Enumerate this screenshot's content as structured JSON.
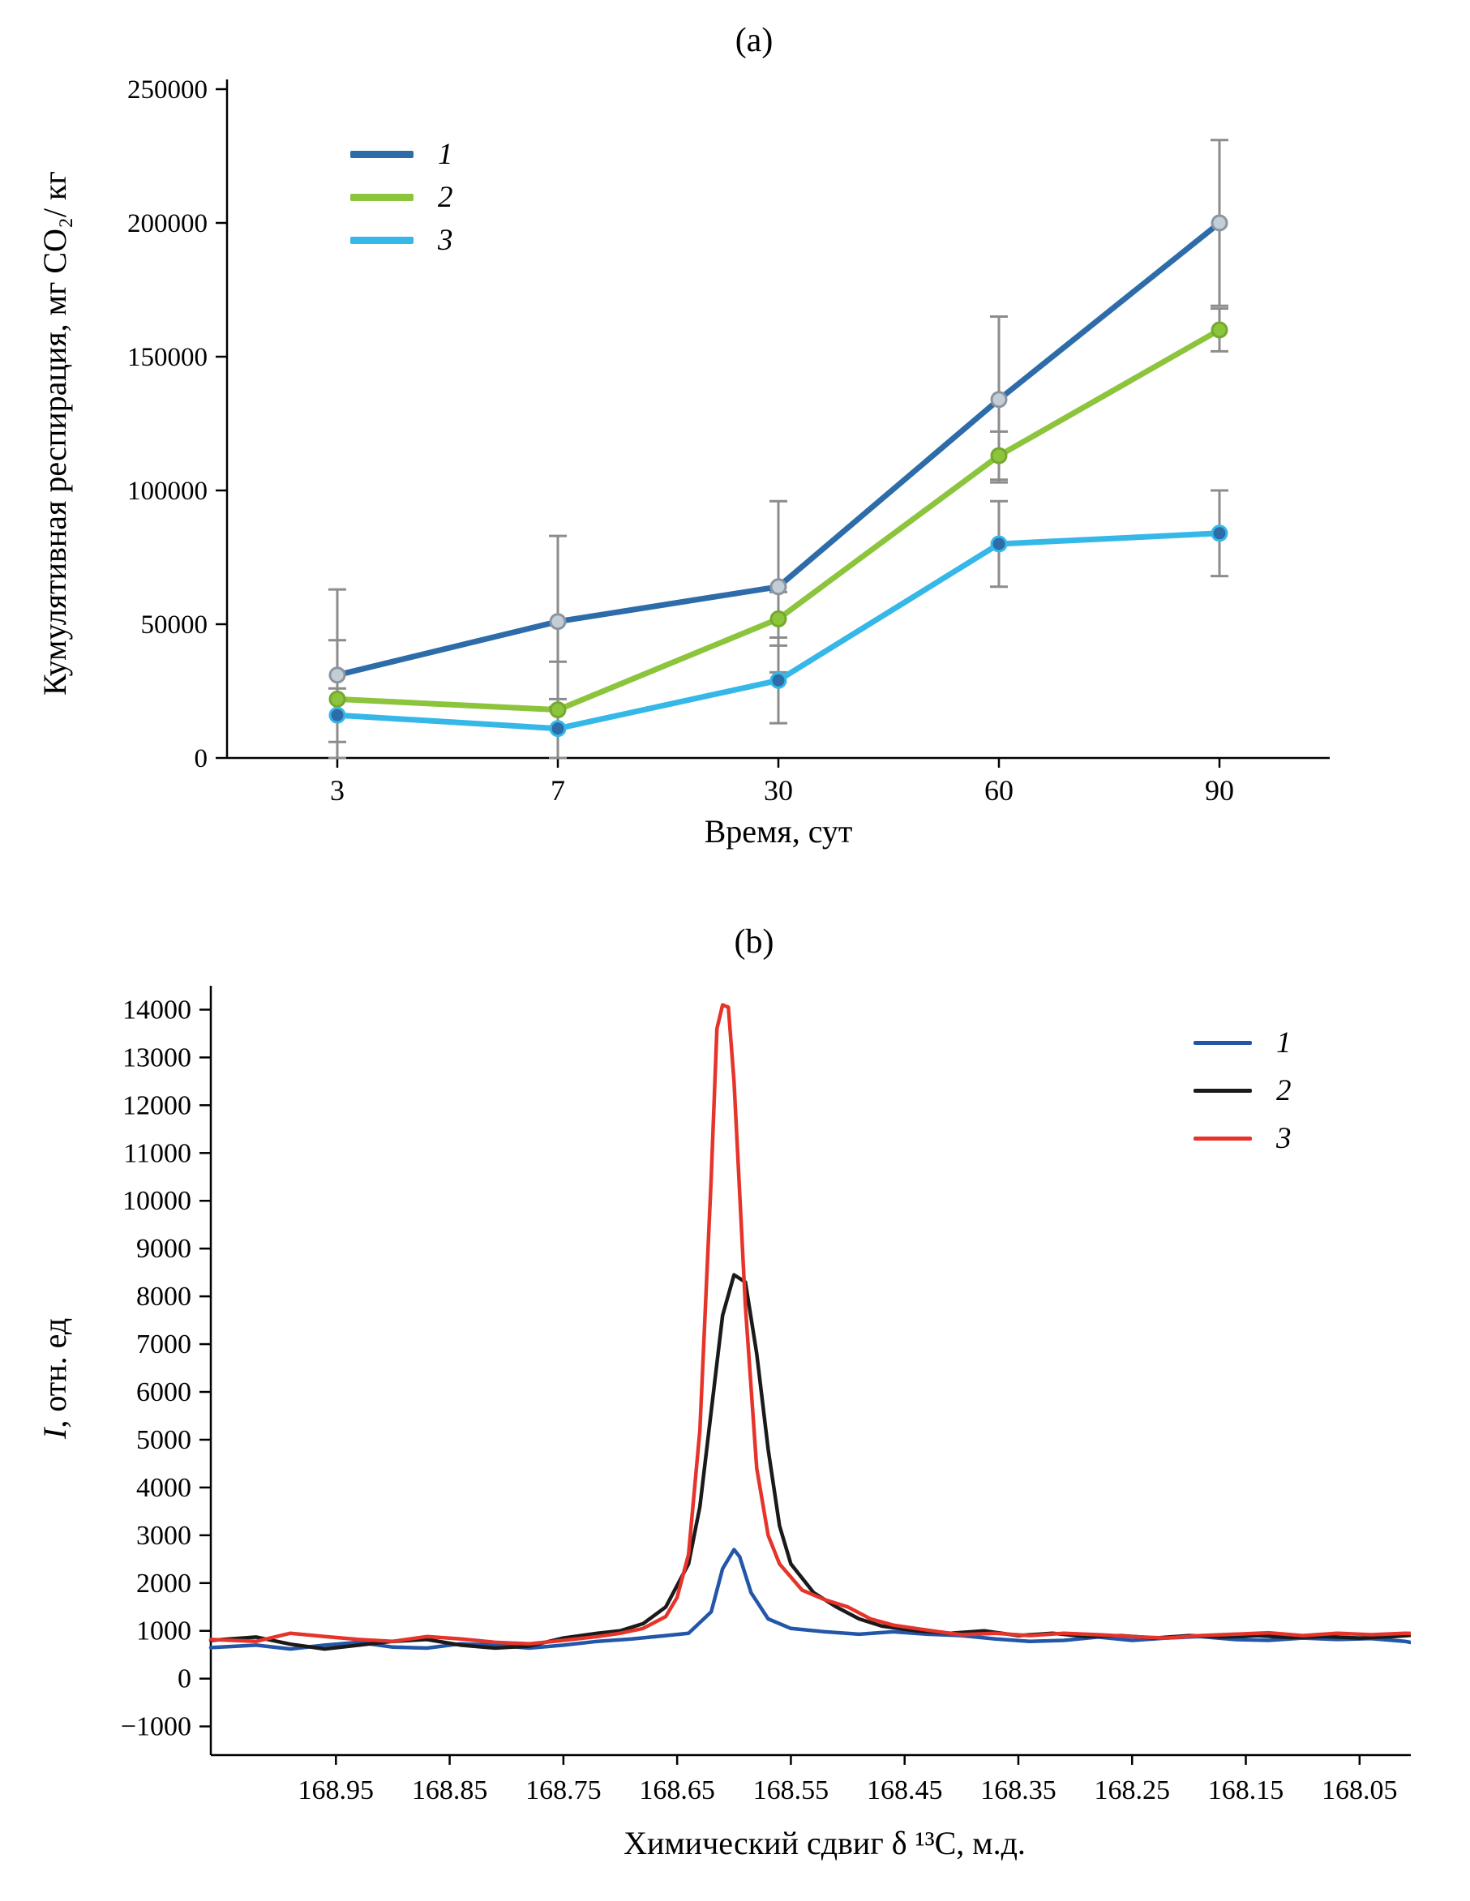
{
  "figure": {
    "panel_a_label": "(a)",
    "panel_b_label": "(b)"
  },
  "chart_data": [
    {
      "type": "line",
      "title": "(a)",
      "xlabel": "Время, сут",
      "ylabel": "Кумулятивная респирация, мг CO₂/ кг",
      "categories": [
        "3",
        "7",
        "30",
        "60",
        "90"
      ],
      "ylim": [
        0,
        250000
      ],
      "yticks": [
        0,
        50000,
        100000,
        150000,
        200000,
        250000
      ],
      "grid": false,
      "legend_position": "upper-left-inside",
      "error_bar_color": "#8c8c8c",
      "series": [
        {
          "name": "1",
          "color": "#2d6ca8",
          "marker_fill": "#c3cdd6",
          "marker_stroke": "#8a959e",
          "values": [
            31000,
            51000,
            64000,
            134000,
            200000
          ],
          "errors": [
            32000,
            32000,
            32000,
            31000,
            31000
          ]
        },
        {
          "name": "2",
          "color": "#8cc43c",
          "marker_fill": "#8cc43c",
          "marker_stroke": "#74a82e",
          "values": [
            22000,
            18000,
            52000,
            113000,
            160000
          ],
          "errors": [
            22000,
            18000,
            10000,
            9000,
            8000
          ]
        },
        {
          "name": "3",
          "color": "#35b8e8",
          "marker_fill": "#2d6ca8",
          "marker_stroke": "#35b8e8",
          "values": [
            16000,
            11000,
            29000,
            80000,
            84000
          ],
          "errors": [
            10000,
            11000,
            16000,
            16000,
            16000
          ]
        }
      ]
    },
    {
      "type": "line",
      "title": "(b)",
      "xlabel": "Химический сдвиг δ ¹³C, м.д.",
      "ylabel": "I, отн. ед",
      "ylabel_italic": "I",
      "ylabel_rest": ", отн. ед",
      "x_axis": "numeric_reversed",
      "xlim": [
        169.06,
        167.98
      ],
      "xticks": [
        168.95,
        168.85,
        168.75,
        168.65,
        168.55,
        168.45,
        168.35,
        168.25,
        168.15,
        168.05
      ],
      "ylim": [
        -1000,
        14000
      ],
      "yticks": [
        -1000,
        0,
        1000,
        2000,
        3000,
        4000,
        5000,
        6000,
        7000,
        8000,
        9000,
        10000,
        11000,
        12000,
        13000,
        14000
      ],
      "grid": false,
      "legend_position": "upper-right-inside",
      "series": [
        {
          "name": "1",
          "color": "#2356a8",
          "points": [
            [
              169.06,
              650
            ],
            [
              169.02,
              700
            ],
            [
              168.99,
              620
            ],
            [
              168.96,
              700
            ],
            [
              168.93,
              760
            ],
            [
              168.9,
              660
            ],
            [
              168.87,
              640
            ],
            [
              168.84,
              730
            ],
            [
              168.81,
              700
            ],
            [
              168.78,
              640
            ],
            [
              168.75,
              700
            ],
            [
              168.72,
              780
            ],
            [
              168.69,
              830
            ],
            [
              168.66,
              900
            ],
            [
              168.64,
              950
            ],
            [
              168.62,
              1400
            ],
            [
              168.61,
              2300
            ],
            [
              168.6,
              2700
            ],
            [
              168.595,
              2550
            ],
            [
              168.585,
              1800
            ],
            [
              168.57,
              1250
            ],
            [
              168.55,
              1050
            ],
            [
              168.52,
              980
            ],
            [
              168.49,
              930
            ],
            [
              168.46,
              980
            ],
            [
              168.43,
              930
            ],
            [
              168.4,
              900
            ],
            [
              168.37,
              830
            ],
            [
              168.34,
              780
            ],
            [
              168.31,
              800
            ],
            [
              168.28,
              870
            ],
            [
              168.25,
              800
            ],
            [
              168.22,
              850
            ],
            [
              168.19,
              880
            ],
            [
              168.16,
              820
            ],
            [
              168.13,
              800
            ],
            [
              168.1,
              850
            ],
            [
              168.07,
              820
            ],
            [
              168.04,
              840
            ],
            [
              168.01,
              780
            ],
            [
              167.98,
              640
            ]
          ]
        },
        {
          "name": "2",
          "color": "#1a1a1a",
          "points": [
            [
              169.06,
              800
            ],
            [
              169.02,
              870
            ],
            [
              168.99,
              720
            ],
            [
              168.96,
              620
            ],
            [
              168.93,
              700
            ],
            [
              168.9,
              780
            ],
            [
              168.87,
              820
            ],
            [
              168.84,
              700
            ],
            [
              168.81,
              640
            ],
            [
              168.78,
              680
            ],
            [
              168.75,
              850
            ],
            [
              168.72,
              950
            ],
            [
              168.7,
              1000
            ],
            [
              168.68,
              1150
            ],
            [
              168.66,
              1500
            ],
            [
              168.64,
              2400
            ],
            [
              168.63,
              3600
            ],
            [
              168.62,
              5600
            ],
            [
              168.61,
              7600
            ],
            [
              168.6,
              8450
            ],
            [
              168.59,
              8300
            ],
            [
              168.58,
              6800
            ],
            [
              168.57,
              4800
            ],
            [
              168.56,
              3200
            ],
            [
              168.55,
              2400
            ],
            [
              168.53,
              1800
            ],
            [
              168.51,
              1500
            ],
            [
              168.49,
              1250
            ],
            [
              168.47,
              1100
            ],
            [
              168.44,
              1000
            ],
            [
              168.41,
              950
            ],
            [
              168.38,
              1000
            ],
            [
              168.35,
              900
            ],
            [
              168.32,
              950
            ],
            [
              168.29,
              880
            ],
            [
              168.26,
              900
            ],
            [
              168.23,
              850
            ],
            [
              168.2,
              900
            ],
            [
              168.17,
              870
            ],
            [
              168.14,
              900
            ],
            [
              168.11,
              860
            ],
            [
              168.08,
              880
            ],
            [
              168.05,
              850
            ],
            [
              168.02,
              880
            ],
            [
              167.98,
              950
            ]
          ]
        },
        {
          "name": "3",
          "color": "#e6342b",
          "points": [
            [
              169.06,
              820
            ],
            [
              169.02,
              780
            ],
            [
              168.99,
              950
            ],
            [
              168.96,
              880
            ],
            [
              168.93,
              820
            ],
            [
              168.9,
              780
            ],
            [
              168.87,
              880
            ],
            [
              168.84,
              830
            ],
            [
              168.81,
              760
            ],
            [
              168.78,
              730
            ],
            [
              168.75,
              800
            ],
            [
              168.72,
              880
            ],
            [
              168.7,
              950
            ],
            [
              168.68,
              1050
            ],
            [
              168.66,
              1300
            ],
            [
              168.65,
              1700
            ],
            [
              168.64,
              2600
            ],
            [
              168.63,
              5200
            ],
            [
              168.62,
              10500
            ],
            [
              168.615,
              13600
            ],
            [
              168.61,
              14100
            ],
            [
              168.605,
              14050
            ],
            [
              168.6,
              12500
            ],
            [
              168.59,
              7800
            ],
            [
              168.58,
              4400
            ],
            [
              168.57,
              3000
            ],
            [
              168.56,
              2400
            ],
            [
              168.54,
              1850
            ],
            [
              168.52,
              1650
            ],
            [
              168.5,
              1500
            ],
            [
              168.48,
              1250
            ],
            [
              168.46,
              1120
            ],
            [
              168.44,
              1050
            ],
            [
              168.42,
              980
            ],
            [
              168.4,
              920
            ],
            [
              168.37,
              950
            ],
            [
              168.34,
              900
            ],
            [
              168.31,
              950
            ],
            [
              168.28,
              920
            ],
            [
              168.25,
              880
            ],
            [
              168.22,
              850
            ],
            [
              168.19,
              900
            ],
            [
              168.16,
              930
            ],
            [
              168.13,
              960
            ],
            [
              168.1,
              900
            ],
            [
              168.07,
              950
            ],
            [
              168.04,
              920
            ],
            [
              168.01,
              950
            ],
            [
              167.98,
              930
            ]
          ]
        }
      ]
    }
  ]
}
